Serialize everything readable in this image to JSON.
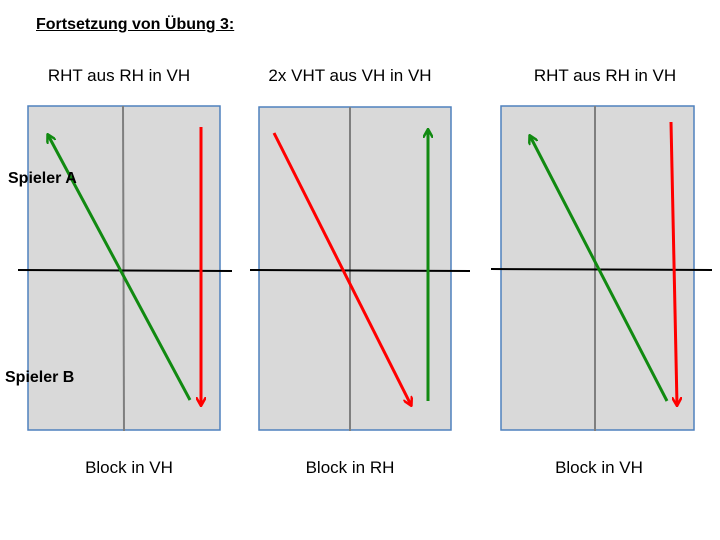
{
  "heading": "Fortsetzung von Übung 3:",
  "players": {
    "a": "Spieler A",
    "b": "Spieler B"
  },
  "panels": [
    {
      "top_label": "RHT aus RH in VH",
      "bottom_label": "Block in VH"
    },
    {
      "top_label": "2x VHT aus VH in VH",
      "bottom_label": "Block in RH"
    },
    {
      "top_label": "RHT aus RH in VH",
      "bottom_label": "Block in VH"
    }
  ],
  "colors": {
    "court_fill": "#d9d9d9",
    "court_border": "#4f81bd",
    "center_line": "#7f7f7f",
    "net_line": "#000000",
    "green_arrow": "#118a11",
    "red_arrow": "#ff0000"
  }
}
